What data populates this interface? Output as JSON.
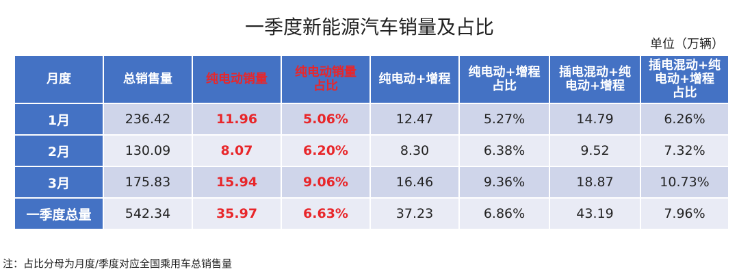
{
  "title": "一季度新能源汽车销量及占比",
  "unit": "单位（万辆）",
  "table": {
    "header": [
      "月度",
      "总销售量",
      "纯电动销量",
      "纯电动销量\n占比",
      "纯电动+增程",
      "纯电动+增程\n占比",
      "插电混动+纯\n电动+增程",
      "插电混动+纯\n电动+增程\n占比"
    ],
    "rows": [
      [
        "1月",
        "236.42",
        "11.96",
        "5.06%",
        "12.47",
        "5.27%",
        "14.79",
        "6.26%"
      ],
      [
        "2月",
        "130.09",
        "8.07",
        "6.20%",
        "8.30",
        "6.38%",
        "9.52",
        "7.32%"
      ],
      [
        "3月",
        "175.83",
        "15.94",
        "9.06%",
        "16.46",
        "9.36%",
        "18.87",
        "10.73%"
      ],
      [
        "一季度总量",
        "542.34",
        "35.97",
        "6.63%",
        "37.23",
        "6.86%",
        "43.19",
        "7.96%"
      ]
    ]
  },
  "note": "注：占比分母为月度/季度对应全国乘用车总销售量"
}
